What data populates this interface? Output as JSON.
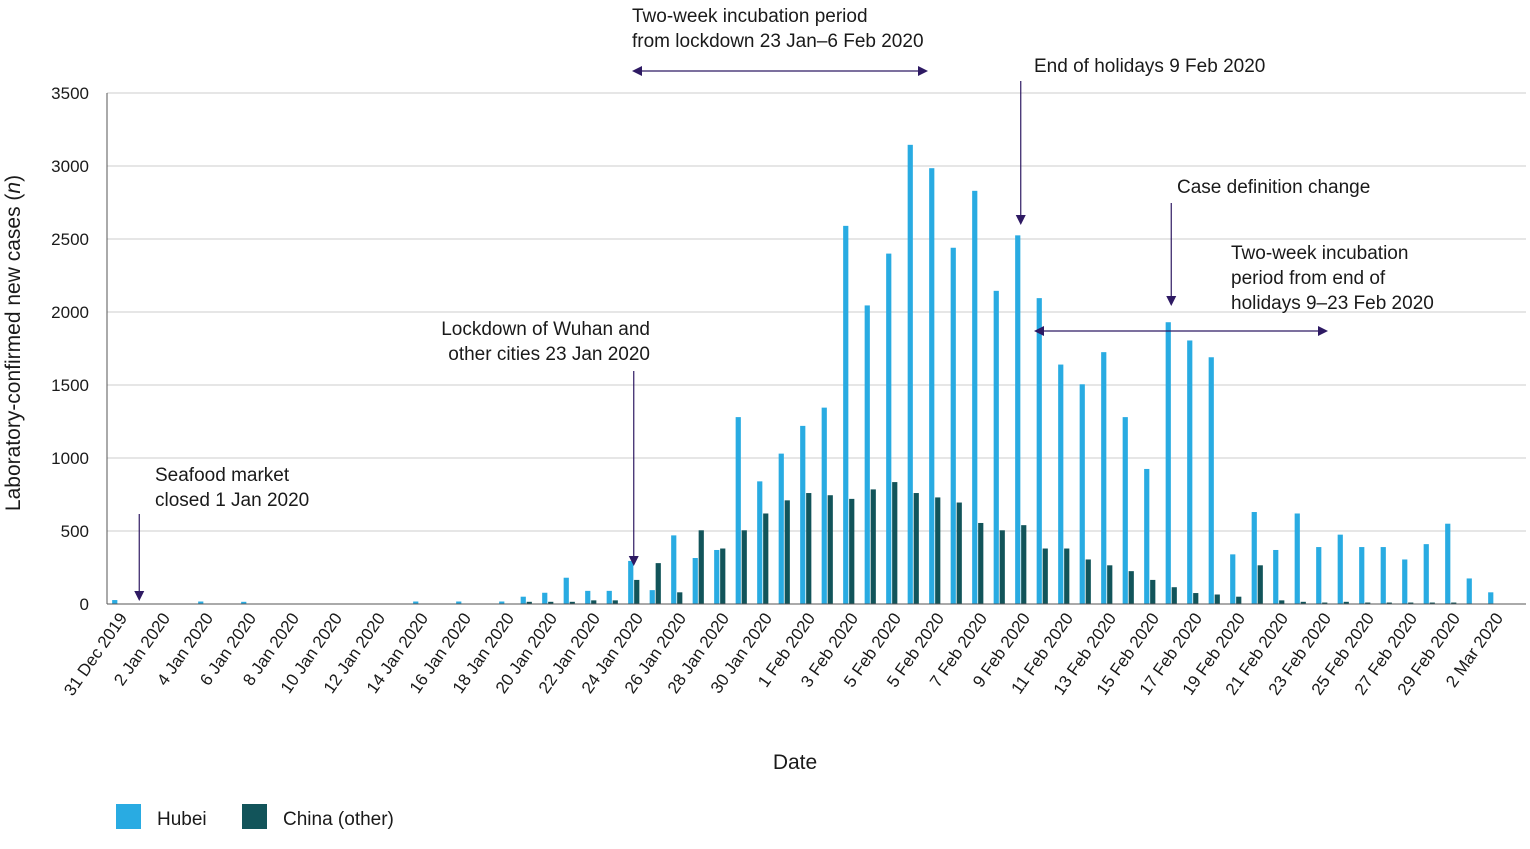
{
  "chart_data": {
    "type": "bar",
    "xlabel": "Date",
    "ylabel_main": "Laboratory-confirmed new cases (",
    "ylabel_italic": "n",
    "ylabel_end": ")",
    "ylim": [
      0,
      3500
    ],
    "yticks": [
      0,
      500,
      1000,
      1500,
      2000,
      2500,
      3000,
      3500
    ],
    "grid": true,
    "legend_position": "bottom-left",
    "colors": {
      "Hubei": "#29abe2",
      "China (other)": "#12545a",
      "arrow": "#2e1a63",
      "grid": "#cccccc"
    },
    "categories": [
      "31 Dec 2019",
      "1 Jan 2020",
      "2 Jan 2020",
      "3 Jan 2020",
      "4 Jan 2020",
      "5 Jan 2020",
      "6 Jan 2020",
      "7 Jan 2020",
      "8 Jan 2020",
      "9 Jan 2020",
      "10 Jan 2020",
      "11 Jan 2020",
      "12 Jan 2020",
      "13 Jan 2020",
      "14 Jan 2020",
      "15 Jan 2020",
      "16 Jan 2020",
      "17 Jan 2020",
      "18 Jan 2020",
      "19 Jan 2020",
      "20 Jan 2020",
      "21 Jan 2020",
      "22 Jan 2020",
      "23 Jan 2020",
      "24 Jan 2020",
      "25 Jan 2020",
      "26 Jan 2020",
      "27 Jan 2020",
      "28 Jan 2020",
      "29 Jan 2020",
      "30 Jan 2020",
      "31 Jan 2020",
      "1 Feb 2020",
      "2 Feb 2020",
      "3 Feb 2020",
      "4 Feb 2020",
      "5 Feb 2020",
      "6 Feb 2020",
      "5 Feb 2020",
      "6 Feb 2020",
      "7 Feb 2020",
      "8 Feb 2020",
      "9 Feb 2020",
      "10 Feb 2020",
      "11 Feb 2020",
      "12 Feb 2020",
      "13 Feb 2020",
      "14 Feb 2020",
      "15 Feb 2020",
      "16 Feb 2020",
      "17 Feb  2020",
      "18 Feb 2020",
      "19 Feb 2020",
      "20 Feb 2020",
      "21 Feb 2020",
      "22 Feb 2020",
      "23 Feb 2020",
      "24 Feb 2020",
      "25 Feb 2020",
      "26 Feb 2020",
      "27 Feb 2020",
      "28 Feb 2020",
      "29 Feb 2020",
      "1 Mar 2020",
      "2 Mar 2020",
      "3 Mar 2020"
    ],
    "tick_labels_shown": [
      "31 Dec 2019",
      "2 Jan 2020",
      "4 Jan 2020",
      "6 Jan 2020",
      "8 Jan 2020",
      "10 Jan 2020",
      "12 Jan 2020",
      "14 Jan 2020",
      "16 Jan 2020",
      "18 Jan 2020",
      "20 Jan 2020",
      "22 Jan 2020",
      "24 Jan 2020",
      "26 Jan 2020",
      "28 Jan 2020",
      "30 Jan 2020",
      "1 Feb 2020",
      "3 Feb 2020",
      "5 Feb 2020",
      "5 Feb 2020",
      "7 Feb 2020",
      "9 Feb 2020",
      "11 Feb 2020",
      "13 Feb 2020",
      "15 Feb 2020",
      "17 Feb  2020",
      "19 Feb 2020",
      "21 Feb 2020",
      "23 Feb 2020",
      "25 Feb 2020",
      "27 Feb 2020",
      "29 Feb 2020",
      "2 Mar 2020"
    ],
    "series": [
      {
        "name": "Hubei",
        "values": [
          27,
          0,
          0,
          0,
          17,
          0,
          15,
          0,
          0,
          0,
          0,
          0,
          0,
          0,
          17,
          0,
          17,
          0,
          17,
          50,
          77,
          180,
          90,
          90,
          295,
          95,
          470,
          315,
          370,
          1280,
          840,
          1030,
          1220,
          1345,
          2590,
          2045,
          2400,
          3145,
          2985,
          2440,
          2830,
          2145,
          2525,
          2095,
          1640,
          1505,
          1725,
          1280,
          925,
          1930,
          1805,
          1690,
          340,
          630,
          370,
          620,
          390,
          475,
          390,
          390,
          305,
          410,
          550,
          175,
          80,
          0
        ],
        "hide_from": 65
      },
      {
        "name": "China (other)",
        "values": [
          0,
          0,
          0,
          0,
          0,
          0,
          0,
          0,
          0,
          0,
          0,
          0,
          0,
          0,
          0,
          0,
          0,
          0,
          0,
          15,
          15,
          15,
          25,
          25,
          165,
          280,
          80,
          505,
          380,
          505,
          620,
          710,
          760,
          745,
          720,
          785,
          835,
          760,
          730,
          695,
          555,
          505,
          540,
          380,
          380,
          305,
          265,
          225,
          165,
          115,
          75,
          65,
          50,
          265,
          25,
          15,
          10,
          15,
          10,
          10,
          10,
          10,
          10,
          0,
          0,
          0
        ]
      }
    ],
    "annotations": {
      "seafood": {
        "lines": [
          "Seafood market",
          "closed 1 Jan 2020"
        ],
        "date_index": 1
      },
      "lockdown": {
        "lines": [
          "Lockdown of Wuhan and",
          "other cities 23 Jan 2020"
        ],
        "date_index": 24
      },
      "incubation1": {
        "lines": [
          "Two-week incubation period",
          "from lockdown 23 Jan–6 Feb 2020"
        ],
        "from_index": 24,
        "to_index": 37
      },
      "holidays": {
        "lines": [
          "End of holidays 9 Feb 2020"
        ],
        "date_index": 42
      },
      "casedef": {
        "lines": [
          "Case definition change"
        ],
        "date_index": 49
      },
      "incubation2": {
        "lines": [
          "Two-week incubation",
          "period from end of",
          "holidays 9–23 Feb 2020"
        ],
        "from_index": 42,
        "to_index": 56
      }
    }
  }
}
